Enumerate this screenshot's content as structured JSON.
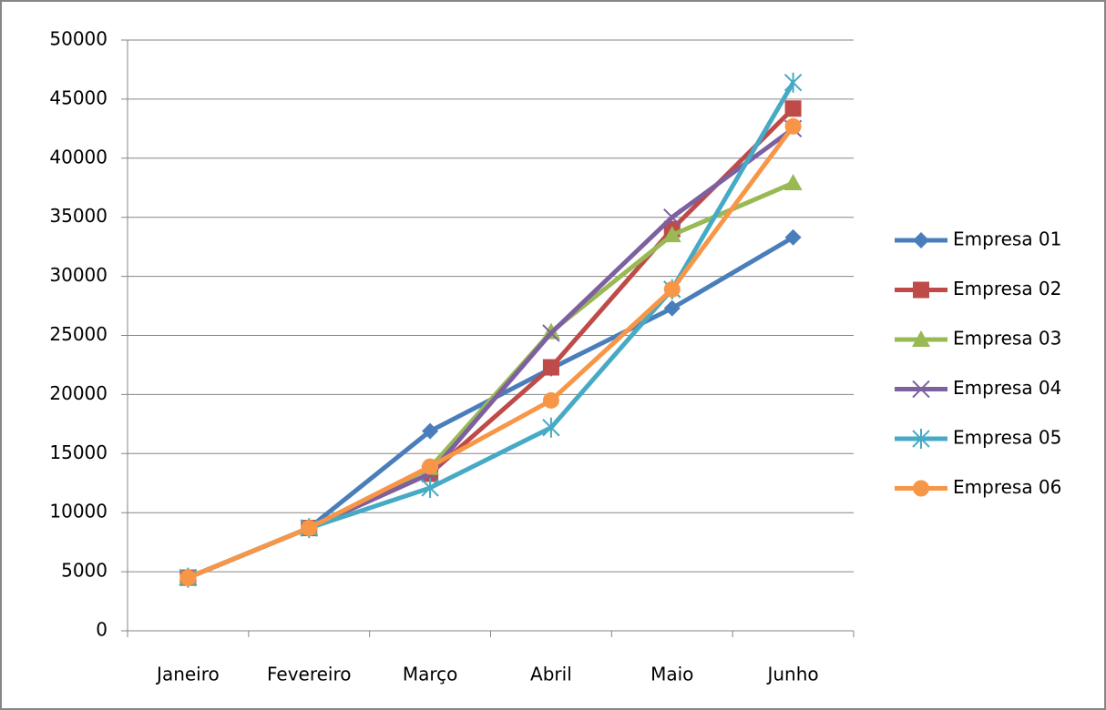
{
  "chart_data": {
    "type": "line",
    "categories": [
      "Janeiro",
      "Fevereiro",
      "Março",
      "Abril",
      "Maio",
      "Junho"
    ],
    "series": [
      {
        "name": "Empresa 01",
        "color": "#4a7ebb",
        "marker": "diamond",
        "values": [
          4500,
          8700,
          16900,
          22200,
          27300,
          33300
        ]
      },
      {
        "name": "Empresa 02",
        "color": "#be4b48",
        "marker": "square",
        "values": [
          4500,
          8700,
          13300,
          22300,
          34000,
          44200
        ]
      },
      {
        "name": "Empresa 03",
        "color": "#98b954",
        "marker": "triangle",
        "values": [
          4500,
          8700,
          13800,
          25300,
          33500,
          37900
        ]
      },
      {
        "name": "Empresa 04",
        "color": "#7d60a0",
        "marker": "x",
        "values": [
          4500,
          8700,
          13300,
          25200,
          35000,
          42500
        ]
      },
      {
        "name": "Empresa 05",
        "color": "#46aac5",
        "marker": "star",
        "values": [
          4500,
          8700,
          12100,
          17200,
          28900,
          46400
        ]
      },
      {
        "name": "Empresa 06",
        "color": "#f79646",
        "marker": "circle",
        "values": [
          4500,
          8700,
          13900,
          19500,
          28900,
          42700
        ]
      }
    ],
    "ylim": [
      0,
      50000
    ],
    "yticks": [
      0,
      5000,
      10000,
      15000,
      20000,
      25000,
      30000,
      35000,
      40000,
      45000,
      50000
    ],
    "grid": true,
    "legend": "right"
  }
}
